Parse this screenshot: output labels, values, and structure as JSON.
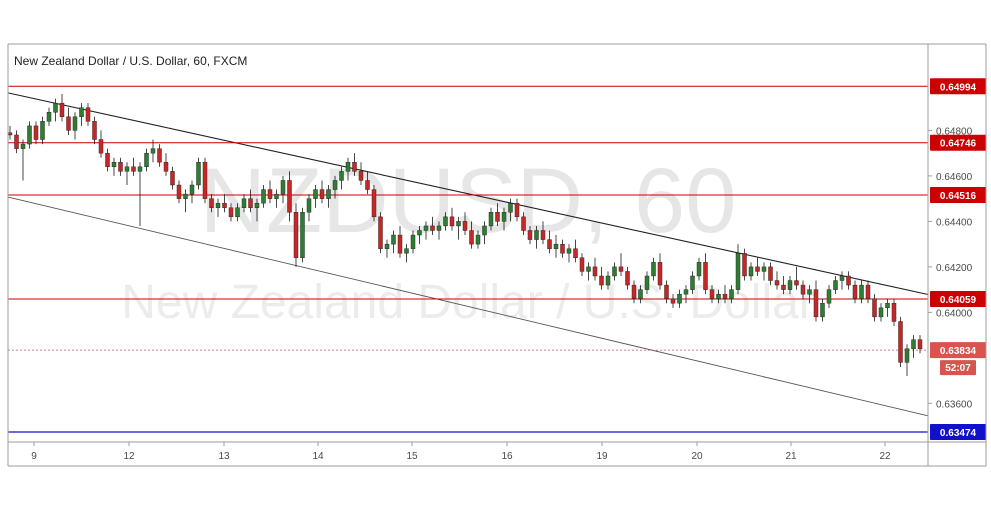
{
  "chart_data": {
    "type": "candlestick",
    "title": "New Zealand Dollar / U.S. Dollar, 60, FXCM",
    "watermark": {
      "symbol": "NZDUSD, 60",
      "name": "New Zealand Dollar / U.S. Dollar"
    },
    "ylim": [
      0.6343,
      0.6518
    ],
    "y_ticks": [
      "0.64800",
      "0.64600",
      "0.64400",
      "0.64200",
      "0.64000",
      "0.63600"
    ],
    "x_ticks": [
      "9",
      "12",
      "13",
      "14",
      "15",
      "16",
      "19",
      "20",
      "21",
      "22"
    ],
    "horizontal_levels": [
      {
        "value": 0.64994,
        "label": "0.64994",
        "color": "#cc0000"
      },
      {
        "value": 0.64746,
        "label": "0.64746",
        "color": "#cc0000"
      },
      {
        "value": 0.64516,
        "label": "0.64516",
        "color": "#cc0000"
      },
      {
        "value": 0.64059,
        "label": "0.64059",
        "color": "#cc0000"
      },
      {
        "value": 0.63474,
        "label": "0.63474",
        "color": "#1111cc"
      }
    ],
    "current_price": {
      "value": 0.63834,
      "label": "0.63834",
      "countdown": "52:07"
    },
    "trendlines": [
      {
        "name": "upper",
        "start": {
          "day": "9",
          "value": 0.6494
        },
        "end": {
          "day": "22",
          "value": 0.6412
        }
      },
      {
        "name": "lower",
        "start": {
          "day": "9",
          "value": 0.6448
        },
        "end": {
          "day": "22",
          "value": 0.6359
        }
      }
    ],
    "colors": {
      "up": "#2e7d32",
      "down": "#c62828",
      "level": "#cc0000",
      "support": "#1111cc"
    },
    "candles": [
      [
        0.6479,
        0.6482,
        0.6476,
        0.6478
      ],
      [
        0.6478,
        0.648,
        0.647,
        0.6472
      ],
      [
        0.6472,
        0.6476,
        0.6458,
        0.6474
      ],
      [
        0.6474,
        0.6484,
        0.6472,
        0.6482
      ],
      [
        0.6482,
        0.6484,
        0.6474,
        0.6476
      ],
      [
        0.6476,
        0.6486,
        0.6474,
        0.6484
      ],
      [
        0.6484,
        0.649,
        0.6482,
        0.6488
      ],
      [
        0.6488,
        0.6494,
        0.6484,
        0.6492
      ],
      [
        0.6492,
        0.6496,
        0.6484,
        0.6486
      ],
      [
        0.6486,
        0.649,
        0.6478,
        0.648
      ],
      [
        0.648,
        0.6488,
        0.6476,
        0.6486
      ],
      [
        0.6486,
        0.6492,
        0.6482,
        0.649
      ],
      [
        0.649,
        0.6492,
        0.6482,
        0.6484
      ],
      [
        0.6484,
        0.6486,
        0.6474,
        0.6476
      ],
      [
        0.6476,
        0.648,
        0.6468,
        0.647
      ],
      [
        0.647,
        0.6472,
        0.6462,
        0.6464
      ],
      [
        0.6464,
        0.6468,
        0.646,
        0.6466
      ],
      [
        0.6466,
        0.6468,
        0.646,
        0.6462
      ],
      [
        0.6462,
        0.6466,
        0.6456,
        0.6464
      ],
      [
        0.6464,
        0.6468,
        0.646,
        0.6462
      ],
      [
        0.6462,
        0.6466,
        0.6438,
        0.6464
      ],
      [
        0.6464,
        0.6472,
        0.6462,
        0.647
      ],
      [
        0.647,
        0.6476,
        0.6466,
        0.6472
      ],
      [
        0.6472,
        0.6474,
        0.6464,
        0.6466
      ],
      [
        0.6466,
        0.647,
        0.646,
        0.6462
      ],
      [
        0.6462,
        0.6464,
        0.6454,
        0.6456
      ],
      [
        0.6456,
        0.6458,
        0.6448,
        0.645
      ],
      [
        0.645,
        0.6454,
        0.6444,
        0.6452
      ],
      [
        0.6452,
        0.6458,
        0.6448,
        0.6456
      ],
      [
        0.6456,
        0.6468,
        0.6454,
        0.6466
      ],
      [
        0.6466,
        0.6468,
        0.6448,
        0.645
      ],
      [
        0.645,
        0.6452,
        0.6444,
        0.6446
      ],
      [
        0.6446,
        0.645,
        0.6442,
        0.6448
      ],
      [
        0.6448,
        0.6452,
        0.6444,
        0.6446
      ],
      [
        0.6446,
        0.6448,
        0.644,
        0.6442
      ],
      [
        0.6442,
        0.6448,
        0.644,
        0.6446
      ],
      [
        0.6446,
        0.6452,
        0.6444,
        0.645
      ],
      [
        0.645,
        0.6454,
        0.6444,
        0.6446
      ],
      [
        0.6446,
        0.645,
        0.644,
        0.6448
      ],
      [
        0.6448,
        0.6456,
        0.6446,
        0.6454
      ],
      [
        0.6454,
        0.6458,
        0.6448,
        0.645
      ],
      [
        0.645,
        0.6454,
        0.6446,
        0.6452
      ],
      [
        0.6452,
        0.646,
        0.6448,
        0.6458
      ],
      [
        0.6458,
        0.6462,
        0.644,
        0.6444
      ],
      [
        0.6444,
        0.6448,
        0.642,
        0.6424
      ],
      [
        0.6424,
        0.6446,
        0.6422,
        0.6444
      ],
      [
        0.6444,
        0.6452,
        0.644,
        0.645
      ],
      [
        0.645,
        0.6456,
        0.6446,
        0.6454
      ],
      [
        0.6454,
        0.6458,
        0.6448,
        0.645
      ],
      [
        0.645,
        0.6456,
        0.6446,
        0.6454
      ],
      [
        0.6454,
        0.646,
        0.645,
        0.6458
      ],
      [
        0.6458,
        0.6464,
        0.6454,
        0.6462
      ],
      [
        0.6462,
        0.6468,
        0.6458,
        0.6466
      ],
      [
        0.6466,
        0.647,
        0.646,
        0.6462
      ],
      [
        0.6462,
        0.6466,
        0.6456,
        0.6458
      ],
      [
        0.6458,
        0.6462,
        0.6452,
        0.6454
      ],
      [
        0.6454,
        0.6456,
        0.644,
        0.6442
      ],
      [
        0.6442,
        0.6444,
        0.6426,
        0.6428
      ],
      [
        0.6428,
        0.6432,
        0.6424,
        0.643
      ],
      [
        0.643,
        0.6436,
        0.6426,
        0.6434
      ],
      [
        0.6434,
        0.6438,
        0.6424,
        0.6426
      ],
      [
        0.6426,
        0.643,
        0.6422,
        0.6428
      ],
      [
        0.6428,
        0.6436,
        0.6426,
        0.6434
      ],
      [
        0.6434,
        0.6438,
        0.643,
        0.6436
      ],
      [
        0.6436,
        0.644,
        0.6432,
        0.6438
      ],
      [
        0.6438,
        0.6442,
        0.6434,
        0.6436
      ],
      [
        0.6436,
        0.644,
        0.6432,
        0.6438
      ],
      [
        0.6438,
        0.6444,
        0.6436,
        0.6442
      ],
      [
        0.6442,
        0.6446,
        0.6436,
        0.6438
      ],
      [
        0.6438,
        0.6442,
        0.6432,
        0.644
      ],
      [
        0.644,
        0.6444,
        0.6434,
        0.6436
      ],
      [
        0.6436,
        0.644,
        0.6428,
        0.643
      ],
      [
        0.643,
        0.6436,
        0.6428,
        0.6434
      ],
      [
        0.6434,
        0.644,
        0.643,
        0.6438
      ],
      [
        0.6438,
        0.6446,
        0.6436,
        0.6444
      ],
      [
        0.6444,
        0.6448,
        0.6438,
        0.644
      ],
      [
        0.644,
        0.6446,
        0.6436,
        0.6444
      ],
      [
        0.6444,
        0.645,
        0.644,
        0.6448
      ],
      [
        0.6448,
        0.645,
        0.644,
        0.6442
      ],
      [
        0.6442,
        0.6444,
        0.6434,
        0.6436
      ],
      [
        0.6436,
        0.6438,
        0.643,
        0.6432
      ],
      [
        0.6432,
        0.6438,
        0.6428,
        0.6436
      ],
      [
        0.6436,
        0.644,
        0.643,
        0.6432
      ],
      [
        0.6432,
        0.6436,
        0.6426,
        0.6428
      ],
      [
        0.6428,
        0.6434,
        0.6424,
        0.643
      ],
      [
        0.643,
        0.6432,
        0.6424,
        0.6426
      ],
      [
        0.6426,
        0.643,
        0.6422,
        0.6428
      ],
      [
        0.6428,
        0.6432,
        0.6422,
        0.6424
      ],
      [
        0.6424,
        0.6426,
        0.6416,
        0.6418
      ],
      [
        0.6418,
        0.6422,
        0.6414,
        0.642
      ],
      [
        0.642,
        0.6424,
        0.6414,
        0.6416
      ],
      [
        0.6416,
        0.642,
        0.641,
        0.6412
      ],
      [
        0.6412,
        0.6418,
        0.641,
        0.6416
      ],
      [
        0.6416,
        0.6422,
        0.6414,
        0.642
      ],
      [
        0.642,
        0.6426,
        0.6416,
        0.6418
      ],
      [
        0.6418,
        0.642,
        0.641,
        0.6412
      ],
      [
        0.6412,
        0.6414,
        0.6404,
        0.6406
      ],
      [
        0.6406,
        0.6412,
        0.6404,
        0.641
      ],
      [
        0.641,
        0.6418,
        0.6408,
        0.6416
      ],
      [
        0.6416,
        0.6424,
        0.6414,
        0.6422
      ],
      [
        0.6422,
        0.6426,
        0.641,
        0.6412
      ],
      [
        0.6412,
        0.6414,
        0.6404,
        0.6406
      ],
      [
        0.6406,
        0.6408,
        0.6402,
        0.6404
      ],
      [
        0.6404,
        0.641,
        0.6402,
        0.6408
      ],
      [
        0.6408,
        0.6412,
        0.6404,
        0.641
      ],
      [
        0.641,
        0.6418,
        0.6408,
        0.6416
      ],
      [
        0.6416,
        0.6424,
        0.6414,
        0.6422
      ],
      [
        0.6422,
        0.6426,
        0.6408,
        0.641
      ],
      [
        0.641,
        0.6412,
        0.6404,
        0.6406
      ],
      [
        0.6406,
        0.641,
        0.6404,
        0.6408
      ],
      [
        0.6408,
        0.6412,
        0.6404,
        0.6406
      ],
      [
        0.6406,
        0.6412,
        0.6404,
        0.641
      ],
      [
        0.641,
        0.643,
        0.6408,
        0.6426
      ],
      [
        0.6426,
        0.6428,
        0.6414,
        0.6416
      ],
      [
        0.6416,
        0.6422,
        0.6414,
        0.642
      ],
      [
        0.642,
        0.6424,
        0.6416,
        0.6418
      ],
      [
        0.6418,
        0.6422,
        0.6414,
        0.642
      ],
      [
        0.642,
        0.6422,
        0.6412,
        0.6414
      ],
      [
        0.6414,
        0.6418,
        0.641,
        0.6412
      ],
      [
        0.6412,
        0.6416,
        0.6408,
        0.641
      ],
      [
        0.641,
        0.6416,
        0.6408,
        0.6414
      ],
      [
        0.6414,
        0.642,
        0.641,
        0.6412
      ],
      [
        0.6412,
        0.6414,
        0.6406,
        0.6408
      ],
      [
        0.6408,
        0.6412,
        0.6404,
        0.641
      ],
      [
        0.641,
        0.6414,
        0.6396,
        0.6398
      ],
      [
        0.6398,
        0.6406,
        0.6396,
        0.6404
      ],
      [
        0.6404,
        0.6412,
        0.6402,
        0.641
      ],
      [
        0.641,
        0.6416,
        0.6408,
        0.6414
      ],
      [
        0.6414,
        0.6418,
        0.641,
        0.6416
      ],
      [
        0.6416,
        0.6418,
        0.641,
        0.6412
      ],
      [
        0.6412,
        0.6414,
        0.6404,
        0.6406
      ],
      [
        0.6406,
        0.6414,
        0.6404,
        0.6412
      ],
      [
        0.6412,
        0.6414,
        0.6404,
        0.6406
      ],
      [
        0.6406,
        0.6408,
        0.6396,
        0.6398
      ],
      [
        0.6398,
        0.6404,
        0.6396,
        0.6402
      ],
      [
        0.6402,
        0.6406,
        0.6398,
        0.6404
      ],
      [
        0.6404,
        0.6406,
        0.6394,
        0.6396
      ],
      [
        0.6396,
        0.6398,
        0.6376,
        0.6378
      ],
      [
        0.6378,
        0.6386,
        0.6372,
        0.6384
      ],
      [
        0.6384,
        0.639,
        0.638,
        0.6388
      ],
      [
        0.6388,
        0.639,
        0.6382,
        0.6384
      ]
    ]
  }
}
